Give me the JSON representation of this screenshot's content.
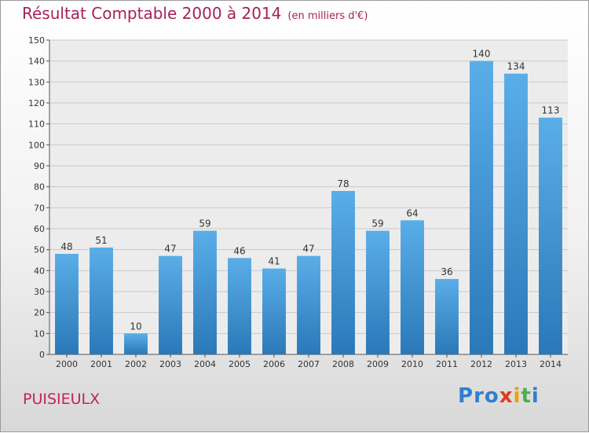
{
  "title": "Résultat Comptable 2000 à 2014",
  "subtitle": "(en milliers d'€)",
  "commune": "PUISIEULX",
  "logo": [
    "P",
    "r",
    "o",
    "x",
    "i",
    "t",
    "i"
  ],
  "colors": {
    "title": "#a8205a",
    "bar_top": "#5aaee8",
    "bar_bottom": "#2a78b8",
    "logo": [
      "#2f7fd0",
      "#2f7fd0",
      "#2f7fd0",
      "#e23a1c",
      "#f0a000",
      "#4caf50",
      "#2f7fd0"
    ]
  },
  "chart_data": {
    "type": "bar",
    "title": "Résultat Comptable 2000 à 2014",
    "ylabel": "en milliers d'€",
    "xlabel": "",
    "ylim": [
      0,
      150
    ],
    "yticks": [
      0,
      10,
      20,
      30,
      40,
      50,
      60,
      70,
      80,
      90,
      100,
      110,
      120,
      130,
      140,
      150
    ],
    "categories": [
      "2000",
      "2001",
      "2002",
      "2003",
      "2004",
      "2005",
      "2006",
      "2007",
      "2008",
      "2009",
      "2010",
      "2011",
      "2012",
      "2013",
      "2014"
    ],
    "values": [
      48,
      51,
      10,
      47,
      59,
      46,
      41,
      47,
      78,
      59,
      64,
      36,
      140,
      134,
      113
    ]
  }
}
